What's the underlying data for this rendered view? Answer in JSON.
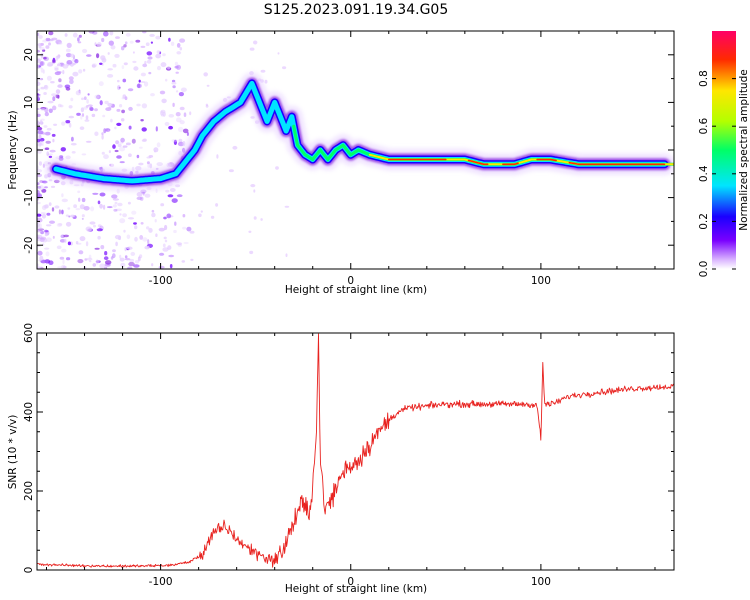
{
  "title": "S125.2023.091.19.34.G05",
  "chart_data": [
    {
      "type": "heatmap",
      "xlabel": "Height of straight line (km)",
      "ylabel": "Frequency (Hz)",
      "xlim": [
        -165,
        170
      ],
      "ylim": [
        -25,
        25
      ],
      "xticks": [
        -100,
        0,
        100
      ],
      "yticks": [
        -20,
        -10,
        0,
        10,
        20
      ],
      "colorbar": {
        "label": "Normalized spectral amplitude",
        "range": [
          0,
          1
        ],
        "ticks": [
          "0.0",
          "0.2",
          "0.4",
          "0.6",
          "0.8"
        ],
        "colormap": [
          "#ffffff",
          "#d9b3ff",
          "#7a00ff",
          "#1a00ff",
          "#00e5ff",
          "#00ff66",
          "#b3ff00",
          "#ffe600",
          "#ff2a00",
          "#ff0066"
        ]
      },
      "ridge": {
        "x": [
          -155,
          -145,
          -130,
          -115,
          -100,
          -92,
          -88,
          -82,
          -78,
          -72,
          -66,
          -58,
          -52,
          -47,
          -44,
          -40,
          -37,
          -34,
          -31,
          -28,
          -24,
          -20,
          -16,
          -12,
          -8,
          -4,
          0,
          4,
          10,
          20,
          30,
          45,
          60,
          70,
          78,
          86,
          95,
          105,
          120,
          140,
          165
        ],
        "y": [
          -4,
          -5,
          -6,
          -6.5,
          -6,
          -5,
          -3,
          0,
          3,
          6,
          8,
          10,
          14,
          9,
          6,
          10,
          7,
          4,
          7,
          1,
          -1,
          -2,
          0,
          -2,
          0,
          1,
          -1,
          0,
          -1,
          -2,
          -2,
          -2,
          -2,
          -3,
          -3,
          -3,
          -2,
          -2,
          -3,
          -3,
          -3
        ]
      }
    },
    {
      "type": "line",
      "xlabel": "Height of straight line (km)",
      "ylabel": "SNR (10 * v/v)",
      "xlim": [
        -165,
        170
      ],
      "ylim": [
        0,
        600
      ],
      "xticks": [
        -100,
        0,
        100
      ],
      "yticks": [
        0,
        200,
        400,
        600
      ],
      "color": "#e8221f",
      "series": [
        {
          "x": [
            -165,
            -150,
            -130,
            -110,
            -95,
            -85,
            -78,
            -74,
            -70,
            -66,
            -62,
            -58,
            -54,
            -50,
            -46,
            -42,
            -38,
            -34,
            -30,
            -26,
            -22,
            -20,
            -18,
            -17,
            -16,
            -14,
            -10,
            -6,
            -2,
            2,
            6,
            10,
            15,
            20,
            25,
            30,
            40,
            50,
            60,
            70,
            80,
            90,
            98,
            100,
            101,
            102,
            106,
            115,
            130,
            150,
            170
          ],
          "y": [
            15,
            12,
            10,
            10,
            12,
            20,
            40,
            80,
            100,
            110,
            90,
            70,
            55,
            45,
            35,
            25,
            30,
            70,
            120,
            170,
            140,
            220,
            350,
            600,
            300,
            150,
            180,
            230,
            260,
            270,
            290,
            320,
            350,
            380,
            400,
            410,
            415,
            420,
            420,
            420,
            420,
            420,
            418,
            330,
            520,
            420,
            420,
            440,
            450,
            460,
            465
          ]
        }
      ]
    }
  ]
}
